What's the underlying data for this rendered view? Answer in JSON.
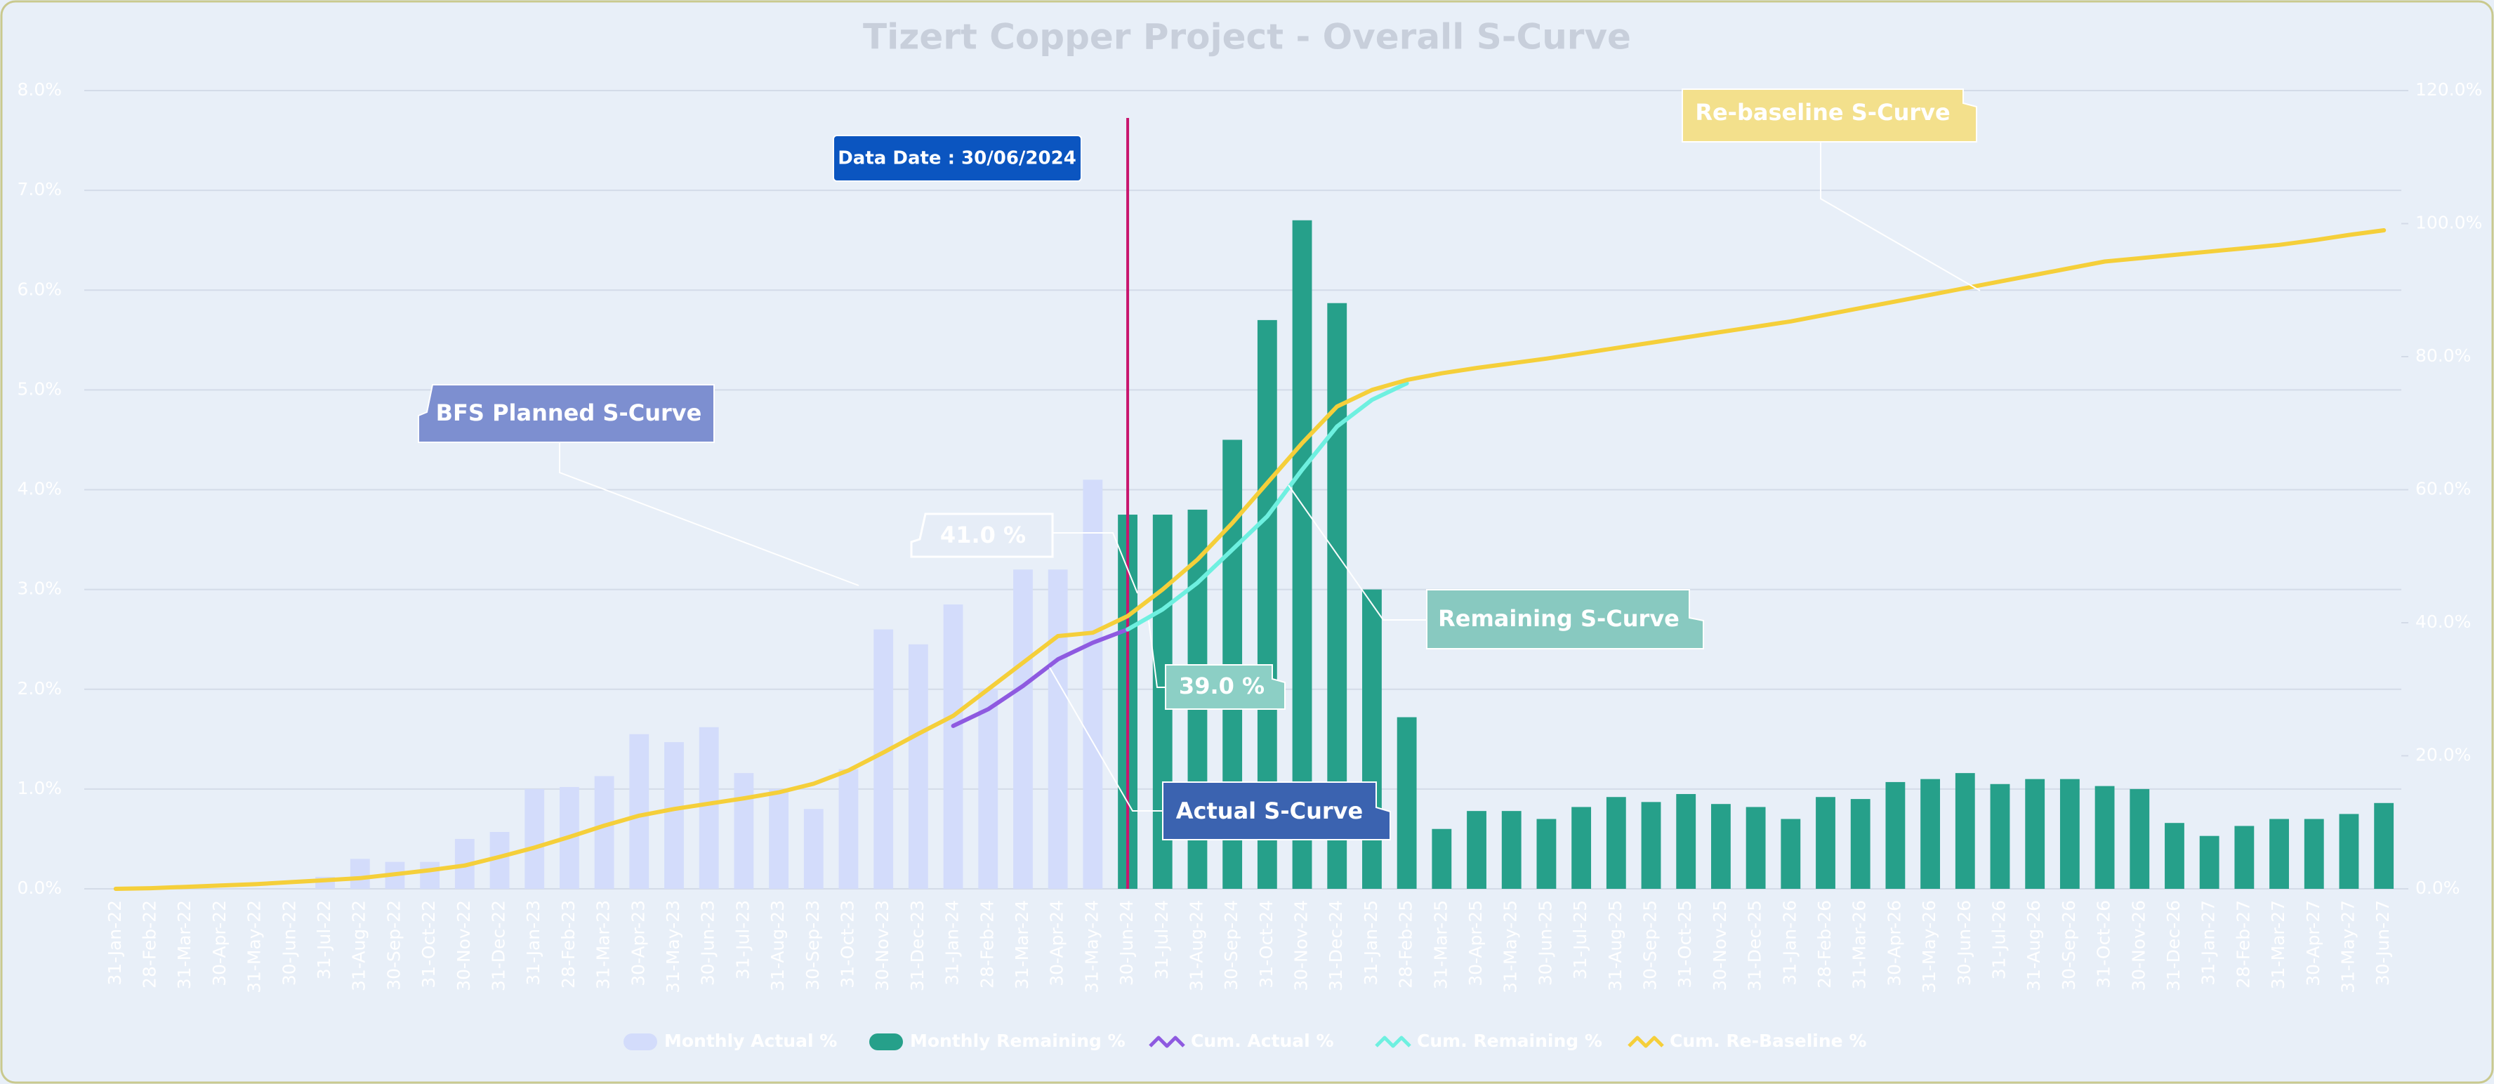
{
  "chart_data": {
    "type": "bar",
    "title": "Tizert Copper Project - Overall S-Curve",
    "categories": [
      "31-Jan-22",
      "28-Feb-22",
      "31-Mar-22",
      "30-Apr-22",
      "31-May-22",
      "30-Jun-22",
      "31-Jul-22",
      "31-Aug-22",
      "30-Sep-22",
      "31-Oct-22",
      "30-Nov-22",
      "31-Dec-22",
      "31-Jan-23",
      "28-Feb-23",
      "31-Mar-23",
      "30-Apr-23",
      "31-May-23",
      "30-Jun-23",
      "31-Jul-23",
      "31-Aug-23",
      "30-Sep-23",
      "31-Oct-23",
      "30-Nov-23",
      "31-Dec-23",
      "31-Jan-24",
      "28-Feb-24",
      "31-Mar-24",
      "30-Apr-24",
      "31-May-24",
      "30-Jun-24",
      "31-Jul-24",
      "31-Aug-24",
      "30-Sep-24",
      "31-Oct-24",
      "30-Nov-24",
      "31-Dec-24",
      "31-Jan-25",
      "28-Feb-25",
      "31-Mar-25",
      "30-Apr-25",
      "31-May-25",
      "30-Jun-25",
      "31-Jul-25",
      "31-Aug-25",
      "30-Sep-25",
      "31-Oct-25",
      "30-Nov-25",
      "31-Dec-25",
      "31-Jan-26",
      "28-Feb-26",
      "31-Mar-26",
      "30-Apr-26",
      "31-May-26",
      "30-Jun-26",
      "31-Jul-26",
      "31-Aug-26",
      "30-Sep-26",
      "31-Oct-26",
      "30-Nov-26",
      "31-Dec-26",
      "31-Jan-27",
      "28-Feb-27",
      "31-Mar-27",
      "30-Apr-27",
      "31-May-27",
      "30-Jun-27"
    ],
    "series": [
      {
        "name": "Monthly Actual %",
        "type": "bar",
        "color": "#d3dcfb",
        "values": [
          null,
          null,
          null,
          null,
          null,
          null,
          0.12,
          0.3,
          0.27,
          0.27,
          0.5,
          0.57,
          1.0,
          1.02,
          1.13,
          1.55,
          1.47,
          1.62,
          1.16,
          1.0,
          0.8,
          1.2,
          2.6,
          2.45,
          2.85,
          2.0,
          3.2,
          3.2,
          4.1,
          null,
          null,
          null,
          null,
          null,
          null,
          null,
          null,
          null,
          null,
          null,
          null,
          null,
          null,
          null,
          null,
          null,
          null,
          null,
          null,
          null,
          null,
          null,
          null,
          null,
          null,
          null,
          null,
          null,
          null,
          null,
          null,
          null,
          null,
          null,
          null,
          null
        ]
      },
      {
        "name": "Monthly Remaining %",
        "type": "bar",
        "color": "#26a08a",
        "values": [
          null,
          null,
          null,
          null,
          null,
          null,
          null,
          null,
          null,
          null,
          null,
          null,
          null,
          null,
          null,
          null,
          null,
          null,
          null,
          null,
          null,
          null,
          null,
          null,
          null,
          null,
          null,
          null,
          null,
          3.75,
          3.75,
          3.8,
          4.5,
          5.7,
          6.7,
          5.87,
          3.0,
          1.72,
          0.6,
          0.78,
          0.78,
          0.7,
          0.82,
          0.92,
          0.87,
          0.95,
          0.85,
          0.82,
          0.7,
          0.92,
          0.9,
          1.07,
          1.1,
          1.16,
          1.05,
          1.1,
          1.1,
          1.03,
          1.0,
          0.66,
          0.53,
          0.63,
          0.7,
          0.7,
          0.75,
          0.86
        ]
      },
      {
        "name": "Cum. Actual %",
        "type": "line",
        "axis": "y2",
        "color": "#8e5ae0",
        "values": [
          null,
          null,
          null,
          null,
          null,
          null,
          null,
          null,
          null,
          null,
          null,
          null,
          null,
          null,
          null,
          null,
          null,
          null,
          null,
          null,
          null,
          null,
          null,
          null,
          24.5,
          27,
          30.5,
          34.5,
          37,
          39,
          null,
          null,
          null,
          null,
          null,
          null,
          null,
          null,
          null,
          null,
          null,
          null,
          null,
          null,
          null,
          null,
          null,
          null,
          null,
          null,
          null,
          null,
          null,
          null,
          null,
          null,
          null,
          null,
          null,
          null,
          null,
          null,
          null,
          null,
          null,
          null
        ]
      },
      {
        "name": "Cum. Remaining %",
        "type": "line",
        "axis": "y2",
        "color": "#6ef0e0",
        "values": [
          null,
          null,
          null,
          null,
          null,
          null,
          null,
          null,
          null,
          null,
          null,
          null,
          null,
          null,
          null,
          null,
          null,
          null,
          null,
          null,
          null,
          null,
          null,
          null,
          null,
          null,
          null,
          null,
          null,
          39,
          42,
          46,
          51,
          56,
          63,
          69.5,
          73.5,
          76,
          null,
          null,
          null,
          null,
          null,
          null,
          null,
          null,
          null,
          null,
          null,
          null,
          null,
          null,
          null,
          null,
          null,
          null,
          null,
          null,
          null,
          null,
          null,
          null,
          null,
          null,
          null,
          null
        ]
      },
      {
        "name": "Cum. Re-Baseline %",
        "type": "line",
        "axis": "y2",
        "color": "#f5cf3a",
        "values": [
          0,
          0.1,
          0.3,
          0.5,
          0.7,
          1.0,
          1.3,
          1.6,
          2.2,
          2.8,
          3.5,
          4.8,
          6.2,
          7.8,
          9.5,
          11,
          12,
          12.8,
          13.6,
          14.5,
          15.8,
          17.8,
          20.5,
          23.3,
          26,
          30,
          34,
          38,
          38.5,
          41,
          45,
          49.5,
          55,
          61,
          67,
          72.5,
          75,
          76.5,
          77.5,
          78.3,
          79,
          79.7,
          80.5,
          81.3,
          82.1,
          82.9,
          83.7,
          84.5,
          85.3,
          86.3,
          87.3,
          88.3,
          89.3,
          90.3,
          91.3,
          92.3,
          93.3,
          94.3,
          94.8,
          95.3,
          95.8,
          96.3,
          96.8,
          97.5,
          98.3,
          99
        ]
      }
    ],
    "ylim": [
      0,
      8
    ],
    "yticks": [
      {
        "value": 0,
        "label": "0.0%"
      },
      {
        "value": 1,
        "label": "1.0%"
      },
      {
        "value": 2,
        "label": "2.0%"
      },
      {
        "value": 3,
        "label": "3.0%"
      },
      {
        "value": 4,
        "label": "4.0%"
      },
      {
        "value": 5,
        "label": "5.0%"
      },
      {
        "value": 6,
        "label": "6.0%"
      },
      {
        "value": 7,
        "label": "7.0%"
      },
      {
        "value": 8,
        "label": "8.0%"
      }
    ],
    "y2lim": [
      0,
      120
    ],
    "y2ticks": [
      {
        "value": 0,
        "label": "0.0%"
      },
      {
        "value": 20,
        "label": "20.0%"
      },
      {
        "value": 40,
        "label": "40.0%"
      },
      {
        "value": 60,
        "label": "60.0%"
      },
      {
        "value": 80,
        "label": "80.0%"
      },
      {
        "value": 100,
        "label": "100.0%"
      },
      {
        "value": 120,
        "label": "120.0%"
      }
    ],
    "grid": true,
    "legend": "bottom",
    "annotations": [
      "Data Date : 30/06/2024",
      "Re-baseline S-Curve",
      "BFS Planned S-Curve",
      "41.0 %",
      "39.0 %",
      "Remaining S-Curve",
      "Actual S-Curve"
    ]
  }
}
